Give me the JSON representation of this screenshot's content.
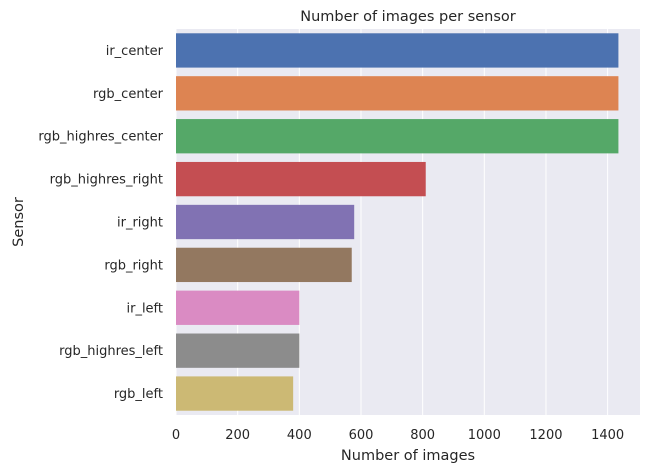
{
  "chart_data": {
    "type": "bar",
    "orientation": "horizontal",
    "title": "Number of images per sensor",
    "xlabel": "Number of images",
    "ylabel": "Sensor",
    "xlim": [
      0,
      1505
    ],
    "xticks": [
      0,
      200,
      400,
      600,
      800,
      1000,
      1200,
      1400
    ],
    "grid": true,
    "categories": [
      "ir_center",
      "rgb_center",
      "rgb_highres_center",
      "rgb_highres_right",
      "ir_right",
      "rgb_right",
      "ir_left",
      "rgb_highres_left",
      "rgb_left"
    ],
    "values": [
      1435,
      1435,
      1435,
      810,
      578,
      570,
      400,
      400,
      380
    ],
    "colors": [
      "#4c72b0",
      "#dd8452",
      "#55a868",
      "#c44e52",
      "#8172b3",
      "#937860",
      "#da8bc3",
      "#8c8c8c",
      "#ccb974"
    ],
    "background": "#eaeaf2"
  }
}
